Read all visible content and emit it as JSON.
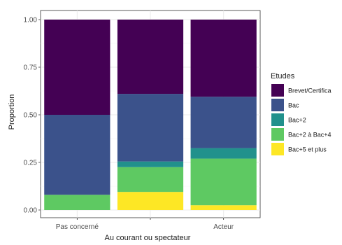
{
  "chart_data": {
    "type": "bar",
    "stacked": true,
    "categories": [
      "Pas concerné",
      "Au courant ou spectateur",
      "Acteur"
    ],
    "category_tick_labels": [
      "Pas concerné",
      "",
      "Acteur"
    ],
    "xlabel": "Au courant ou spectateur",
    "ylabel": "Proportion",
    "ylim": [
      0,
      1
    ],
    "yticks": [
      "0.00",
      "0.25",
      "0.50",
      "0.75",
      "1.00"
    ],
    "grid": true,
    "legend": {
      "title": "Etudes",
      "placement": "right",
      "labels": [
        "Brevet/Certifica",
        "Bac",
        "Bac+2",
        "Bac+2 à Bac+4",
        "Bac+5 et plus"
      ]
    },
    "series": [
      {
        "values": [
          0.0,
          0.095,
          0.025
        ],
        "color": "#fde725"
      },
      {
        "values": [
          0.08,
          0.13,
          0.245
        ],
        "color": "#5ec962"
      },
      {
        "values": [
          0.0,
          0.03,
          0.055
        ],
        "color": "#21918c"
      },
      {
        "values": [
          0.42,
          0.355,
          0.27
        ],
        "color": "#3b528b"
      },
      {
        "values": [
          0.5,
          0.39,
          0.405
        ],
        "color": "#440154"
      }
    ]
  }
}
